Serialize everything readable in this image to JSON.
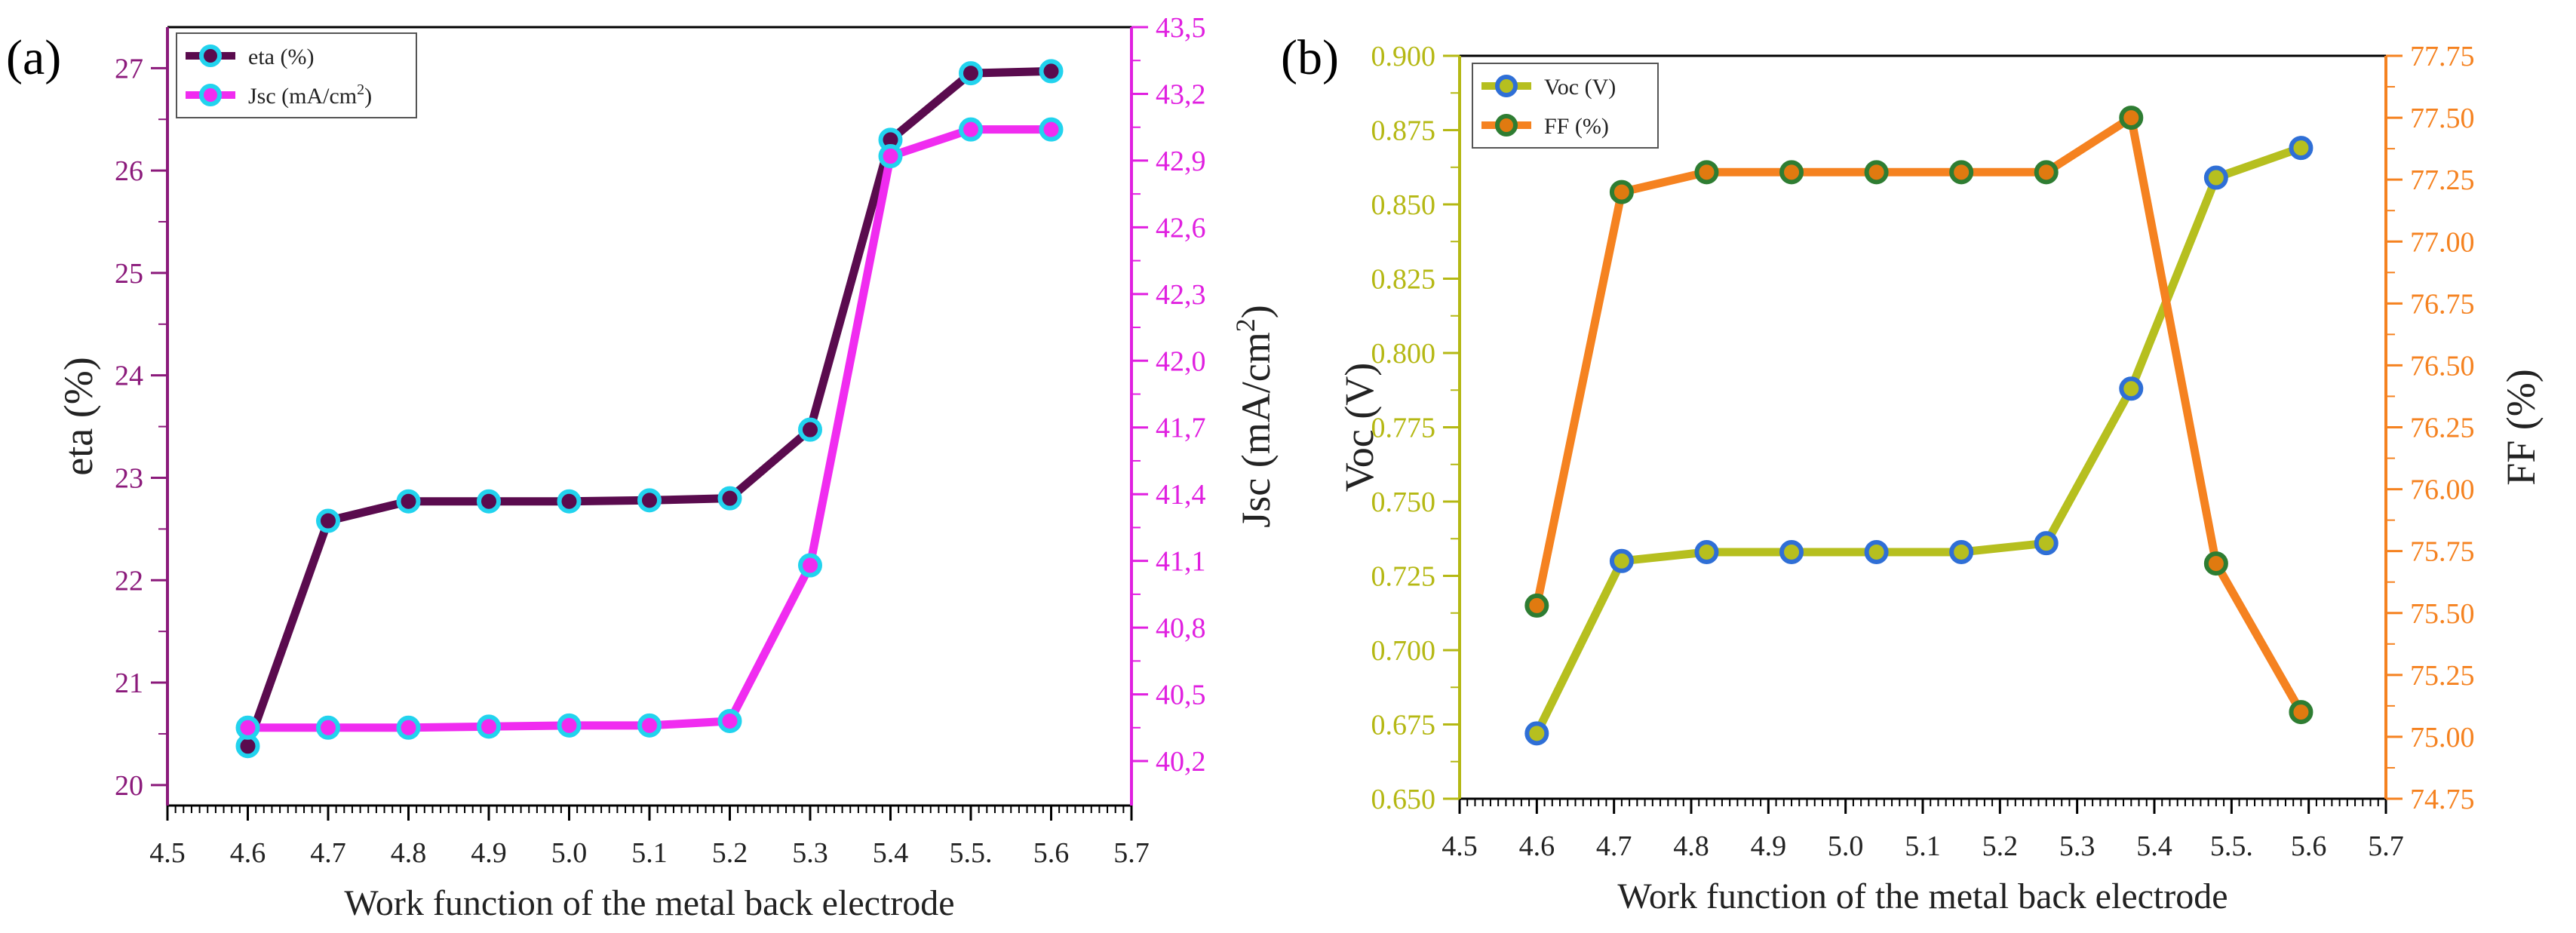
{
  "chart_data": [
    {
      "type": "line",
      "panel_label": "(a)",
      "xlabel": "Work function of the metal back electrode",
      "x_ticks": [
        4.5,
        4.6,
        4.7,
        4.8,
        4.9,
        5.0,
        5.1,
        5.2,
        5.3,
        5.4,
        5.5,
        5.6,
        5.7
      ],
      "x_tick_labels": [
        "4.5",
        "4.6",
        "4.7",
        "4.8",
        "4.9",
        "5.0",
        "5.1",
        "5.2",
        "5.3",
        "5.4",
        "5.5.",
        "5.6",
        "5.7"
      ],
      "xlim": [
        4.5,
        5.7
      ],
      "y_left": {
        "label": "eta (%)",
        "lim": [
          19.8,
          27.4
        ],
        "ticks": [
          20,
          21,
          22,
          23,
          24,
          25,
          26,
          27
        ],
        "tick_labels": [
          "20",
          "21",
          "22",
          "23",
          "24",
          "25",
          "26",
          "27"
        ],
        "color": "#8b1a7b"
      },
      "y_right": {
        "label": "Jsc (mA/cm",
        "label_sup": "2",
        "label_end": ")",
        "lim": [
          40.0,
          43.5
        ],
        "ticks": [
          40.2,
          40.5,
          40.8,
          41.1,
          41.4,
          41.7,
          42.0,
          42.3,
          42.6,
          42.9,
          43.2,
          43.5
        ],
        "tick_labels": [
          "40,2",
          "40,5",
          "40,8",
          "41,1",
          "41,4",
          "41,7",
          "42,0",
          "42,3",
          "42,6",
          "42,9",
          "43,2",
          "43,5"
        ],
        "color": "#e020e0"
      },
      "series": [
        {
          "name": "eta (%)",
          "axis": "left",
          "line_color": "#5a0b4e",
          "marker_face": "#5a0b4e",
          "marker_edge": "#22d3ee",
          "x": [
            4.6,
            4.7,
            4.8,
            4.9,
            5.0,
            5.1,
            5.2,
            5.3,
            5.4,
            5.5,
            5.6
          ],
          "values": [
            20.38,
            22.58,
            22.77,
            22.77,
            22.77,
            22.78,
            22.8,
            23.47,
            26.3,
            26.95,
            26.97
          ]
        },
        {
          "name": "Jsc (mA/cm",
          "name_sup": "2",
          "name_end": ")",
          "axis": "right",
          "line_color": "#f02cf0",
          "marker_face": "#f02cf0",
          "marker_edge": "#22d3ee",
          "x": [
            4.6,
            4.7,
            4.8,
            4.9,
            5.0,
            5.1,
            5.2,
            5.3,
            5.4,
            5.5,
            5.6
          ],
          "values": [
            40.35,
            40.35,
            40.35,
            40.355,
            40.36,
            40.36,
            40.38,
            41.08,
            42.92,
            43.04,
            43.04
          ]
        }
      ],
      "legend_position": "top-left"
    },
    {
      "type": "line",
      "panel_label": "(b)",
      "xlabel": "Work function of the metal back electrode",
      "x_ticks": [
        4.5,
        4.6,
        4.7,
        4.8,
        4.9,
        5.0,
        5.1,
        5.2,
        5.3,
        5.4,
        5.5,
        5.6,
        5.7
      ],
      "x_tick_labels": [
        "4.5",
        "4.6",
        "4.7",
        "4.8",
        "4.9",
        "5.0",
        "5.1",
        "5.2",
        "5.3",
        "5.4",
        "5.5.",
        "5.6",
        "5.7"
      ],
      "xlim": [
        4.5,
        5.7
      ],
      "y_left": {
        "label": "Voc (V)",
        "lim": [
          0.65,
          0.9
        ],
        "ticks": [
          0.65,
          0.675,
          0.7,
          0.725,
          0.75,
          0.775,
          0.8,
          0.825,
          0.85,
          0.875,
          0.9
        ],
        "tick_labels": [
          "0.650",
          "0.675",
          "0.700",
          "0.725",
          "0.750",
          "0.775",
          "0.800",
          "0.825",
          "0.850",
          "0.875",
          "0.900"
        ],
        "color": "#b5b814"
      },
      "y_right": {
        "label": "FF (%)",
        "lim": [
          74.75,
          77.75
        ],
        "ticks": [
          74.75,
          75.0,
          75.25,
          75.5,
          75.75,
          76.0,
          76.25,
          76.5,
          76.75,
          77.0,
          77.25,
          77.5,
          77.75
        ],
        "tick_labels": [
          "74.75",
          "75.00",
          "75.25",
          "75.50",
          "75.75",
          "76.00",
          "76.25",
          "76.50",
          "76.75",
          "77.00",
          "77.25",
          "77.50",
          "77.75"
        ],
        "color": "#f58220"
      },
      "series": [
        {
          "name": "Voc (V)",
          "axis": "left",
          "line_color": "#b6bf1f",
          "marker_face": "#b6bf1f",
          "marker_edge": "#2f6fd6",
          "x": [
            4.6,
            4.71,
            4.82,
            4.93,
            5.04,
            5.15,
            5.26,
            5.37,
            5.48,
            5.59
          ],
          "values": [
            0.672,
            0.73,
            0.733,
            0.733,
            0.733,
            0.733,
            0.736,
            0.788,
            0.859,
            0.869
          ]
        },
        {
          "name": "FF (%)",
          "axis": "right",
          "line_color": "#f58220",
          "marker_face": "#e07a10",
          "marker_edge": "#2e7d32",
          "x": [
            4.6,
            4.71,
            4.82,
            4.93,
            5.04,
            5.15,
            5.26,
            5.37,
            5.48,
            5.59
          ],
          "values": [
            75.53,
            77.2,
            77.28,
            77.28,
            77.28,
            77.28,
            77.28,
            77.5,
            75.7,
            75.1
          ]
        }
      ],
      "legend_position": "top-left"
    }
  ]
}
